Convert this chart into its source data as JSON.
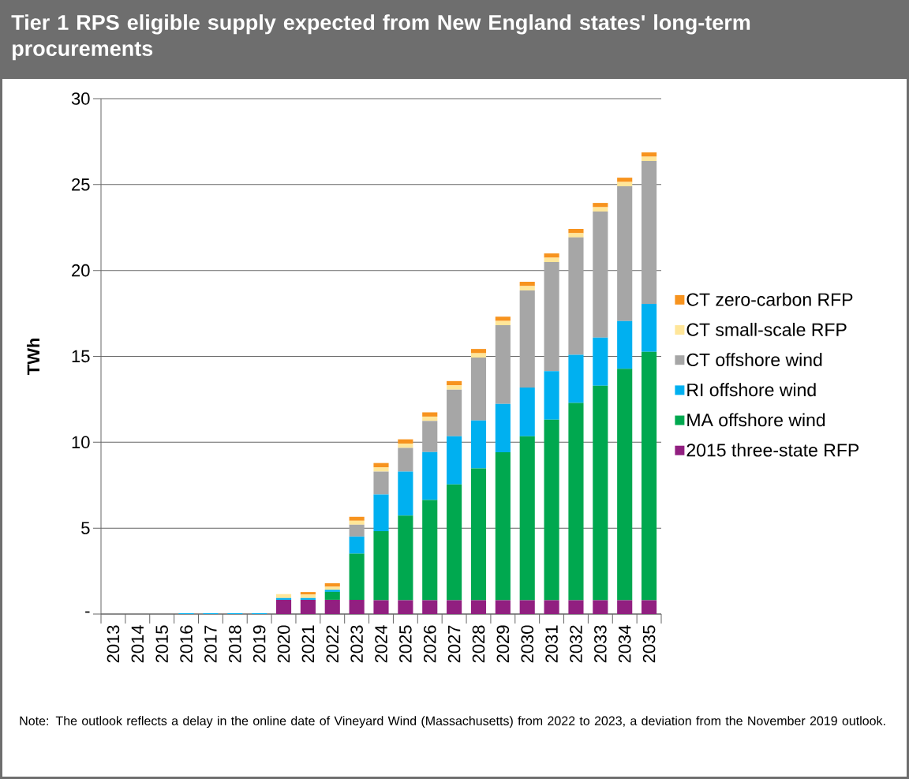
{
  "chart_data": {
    "type": "bar",
    "stacked": true,
    "title": "Tier 1 RPS eligible supply expected from New England states' long-term procurements",
    "ylabel": "TWh",
    "categories": [
      "2013",
      "2014",
      "2015",
      "2016",
      "2017",
      "2018",
      "2019",
      "2020",
      "2021",
      "2022",
      "2023",
      "2024",
      "2025",
      "2026",
      "2027",
      "2028",
      "2029",
      "2030",
      "2031",
      "2032",
      "2033",
      "2034",
      "2035"
    ],
    "series": [
      {
        "name": "2015 three-state RFP",
        "color": "#911f80",
        "values": [
          0,
          0,
          0,
          0,
          0,
          0,
          0,
          0.83,
          0.83,
          0.83,
          0.83,
          0.8,
          0.8,
          0.8,
          0.8,
          0.8,
          0.8,
          0.8,
          0.8,
          0.8,
          0.8,
          0.8,
          0.8
        ]
      },
      {
        "name": "MA offshore wind",
        "color": "#00a84f",
        "values": [
          0,
          0,
          0,
          0,
          0,
          0,
          0,
          0,
          0,
          0.46,
          2.68,
          4.02,
          4.93,
          5.84,
          6.75,
          7.67,
          8.62,
          9.55,
          10.51,
          11.49,
          12.49,
          13.48,
          14.46
        ]
      },
      {
        "name": "RI offshore wind",
        "color": "#00b0f0",
        "values": [
          0,
          0,
          0,
          0.05,
          0.05,
          0.05,
          0.05,
          0.1,
          0.1,
          0.12,
          1.0,
          2.14,
          2.56,
          2.79,
          2.8,
          2.8,
          2.81,
          2.83,
          2.83,
          2.8,
          2.8,
          2.78,
          2.8
        ]
      },
      {
        "name": "CT offshore wind",
        "color": "#a6a6a6",
        "values": [
          0,
          0,
          0,
          0,
          0,
          0,
          0,
          0,
          0,
          0,
          0.69,
          1.33,
          1.38,
          1.81,
          2.71,
          3.66,
          4.58,
          5.66,
          6.35,
          6.83,
          7.34,
          7.84,
          8.31
        ]
      },
      {
        "name": "CT small-scale RFP",
        "color": "#ffe699",
        "values": [
          0,
          0,
          0,
          0,
          0,
          0,
          0,
          0.23,
          0.2,
          0.18,
          0.23,
          0.25,
          0.25,
          0.25,
          0.25,
          0.25,
          0.25,
          0.25,
          0.25,
          0.25,
          0.25,
          0.25,
          0.25
        ]
      },
      {
        "name": "CT zero-carbon RFP",
        "color": "#f7931e",
        "values": [
          0,
          0,
          0,
          0,
          0,
          0,
          0,
          0,
          0.15,
          0.2,
          0.23,
          0.25,
          0.25,
          0.25,
          0.25,
          0.25,
          0.25,
          0.25,
          0.25,
          0.25,
          0.25,
          0.25,
          0.25
        ]
      }
    ],
    "ylim": [
      0,
      30
    ],
    "yticks": [
      {
        "value": 0,
        "label": "-"
      },
      5,
      10,
      15,
      20,
      25,
      30
    ],
    "grid": "y",
    "legend": "right",
    "annotations": [
      "Note: The outlook reflects a delay in the online date of Vineyard Wind (Massachusetts) from 2022 to 2023, a deviation from the November 2019 outlook."
    ]
  }
}
